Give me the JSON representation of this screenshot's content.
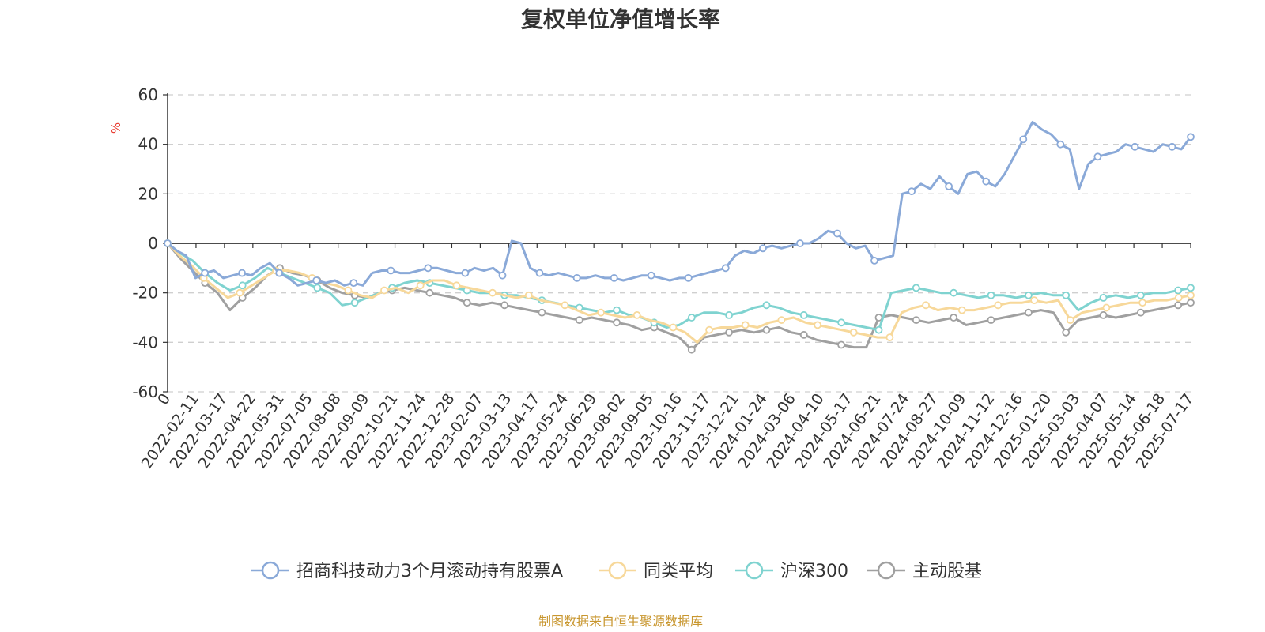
{
  "chart_data": {
    "type": "line",
    "title": "复权单位净值增长率",
    "ylabel": "%",
    "ylim": [
      -60,
      60
    ],
    "yticks": [
      60,
      40,
      20,
      0,
      -20,
      -40,
      -60
    ],
    "grid": true,
    "legend_position": "bottom",
    "x_tick_labels": [
      "0",
      "2022-02-11",
      "2022-03-17",
      "2022-04-22",
      "2022-05-31",
      "2022-07-05",
      "2022-08-08",
      "2022-09-09",
      "2022-10-21",
      "2022-11-24",
      "2022-12-28",
      "2023-02-07",
      "2023-03-13",
      "2023-04-17",
      "2023-05-24",
      "2023-06-29",
      "2023-08-02",
      "2023-09-05",
      "2023-10-16",
      "2023-11-17",
      "2023-12-21",
      "2024-01-24",
      "2024-03-06",
      "2024-04-10",
      "2024-05-17",
      "2024-06-21",
      "2024-07-24",
      "2024-08-27",
      "2024-10-09",
      "2024-11-12",
      "2024-12-16",
      "2025-01-20",
      "2025-03-03",
      "2025-04-07",
      "2025-05-14",
      "2025-06-18",
      "2025-07-17"
    ],
    "series": [
      {
        "name": "招商科技动力3个月滚动持有股票A",
        "color": "#8aa9d8",
        "values": [
          0,
          -3,
          -5,
          -14,
          -12,
          -11,
          -14,
          -13,
          -12,
          -13,
          -10,
          -8,
          -12,
          -14,
          -17,
          -16,
          -15,
          -16,
          -15,
          -17,
          -16,
          -17,
          -12,
          -11,
          -11,
          -12,
          -12,
          -11,
          -10,
          -10,
          -11,
          -12,
          -12,
          -10,
          -11,
          -10,
          -13,
          1,
          0,
          -10,
          -12,
          -13,
          -12,
          -13,
          -14,
          -14,
          -13,
          -14,
          -14,
          -15,
          -14,
          -13,
          -13,
          -14,
          -15,
          -14,
          -14,
          -13,
          -12,
          -11,
          -10,
          -5,
          -3,
          -4,
          -2,
          -1,
          -2,
          -1,
          0,
          0,
          2,
          5,
          4,
          0,
          -2,
          -1,
          -7,
          -6,
          -5,
          20,
          21,
          24,
          22,
          27,
          23,
          20,
          28,
          29,
          25,
          23,
          28,
          35,
          42,
          49,
          46,
          44,
          40,
          38,
          22,
          32,
          35,
          36,
          37,
          40,
          39,
          38,
          37,
          40,
          39,
          38,
          43
        ]
      },
      {
        "name": "同类平均",
        "color": "#f7d89a",
        "values": [
          0,
          -5,
          -9,
          -14,
          -18,
          -22,
          -20,
          -17,
          -14,
          -11,
          -11,
          -12,
          -14,
          -16,
          -17,
          -19,
          -21,
          -22,
          -19,
          -18,
          -20,
          -17,
          -15,
          -15,
          -17,
          -18,
          -19,
          -20,
          -21,
          -22,
          -21,
          -23,
          -24,
          -25,
          -27,
          -29,
          -28,
          -29,
          -30,
          -29,
          -31,
          -32,
          -34,
          -36,
          -40,
          -35,
          -34,
          -34,
          -33,
          -34,
          -32,
          -31,
          -30,
          -32,
          -33,
          -34,
          -35,
          -36,
          -37,
          -38,
          -38,
          -28,
          -26,
          -25,
          -27,
          -26,
          -27,
          -27,
          -26,
          -25,
          -24,
          -24,
          -23,
          -24,
          -23,
          -31,
          -28,
          -27,
          -26,
          -25,
          -24,
          -24,
          -23,
          -23,
          -22,
          -21
        ]
      },
      {
        "name": "沪深300",
        "color": "#7fd3d0",
        "values": [
          0,
          -4,
          -7,
          -12,
          -16,
          -19,
          -17,
          -14,
          -10,
          -12,
          -14,
          -16,
          -18,
          -20,
          -25,
          -24,
          -22,
          -20,
          -18,
          -16,
          -15,
          -16,
          -17,
          -18,
          -19,
          -20,
          -20,
          -21,
          -21,
          -22,
          -23,
          -24,
          -25,
          -26,
          -27,
          -28,
          -27,
          -29,
          -30,
          -32,
          -34,
          -33,
          -30,
          -28,
          -28,
          -29,
          -28,
          -26,
          -25,
          -26,
          -28,
          -29,
          -30,
          -31,
          -32,
          -33,
          -34,
          -35,
          -20,
          -19,
          -18,
          -19,
          -20,
          -20,
          -21,
          -22,
          -21,
          -21,
          -22,
          -21,
          -20,
          -21,
          -21,
          -27,
          -24,
          -22,
          -21,
          -22,
          -21,
          -20,
          -20,
          -19,
          -18
        ]
      },
      {
        "name": "主动股基",
        "color": "#a0a0a0",
        "values": [
          0,
          -6,
          -11,
          -16,
          -20,
          -27,
          -22,
          -18,
          -13,
          -10,
          -12,
          -13,
          -15,
          -18,
          -20,
          -21,
          -22,
          -20,
          -19,
          -18,
          -19,
          -20,
          -21,
          -22,
          -24,
          -25,
          -24,
          -25,
          -26,
          -27,
          -28,
          -29,
          -30,
          -31,
          -30,
          -31,
          -32,
          -33,
          -35,
          -34,
          -36,
          -38,
          -43,
          -38,
          -37,
          -36,
          -35,
          -36,
          -35,
          -34,
          -36,
          -37,
          -39,
          -40,
          -41,
          -42,
          -42,
          -30,
          -29,
          -30,
          -31,
          -32,
          -31,
          -30,
          -33,
          -32,
          -31,
          -30,
          -29,
          -28,
          -27,
          -28,
          -36,
          -31,
          -30,
          -29,
          -30,
          -29,
          -28,
          -27,
          -26,
          -25,
          -24
        ]
      }
    ]
  },
  "footer": "制图数据来自恒生聚源数据库"
}
